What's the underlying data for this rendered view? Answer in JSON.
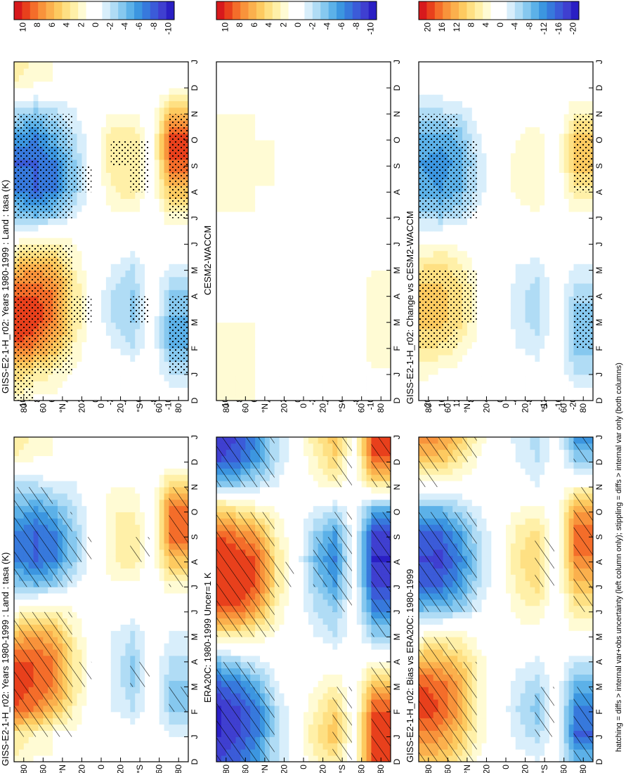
{
  "figure": {
    "footnote": "hatching = diffs > internal var+obs uncertainty (left column only); stippling = diffs > internal var only (both columns)"
  },
  "palette": {
    "levels": [
      "#d7191c",
      "#e8401c",
      "#f46d2a",
      "#f8933b",
      "#fbb04d",
      "#fdca60",
      "#fee083",
      "#fff0a8",
      "#fffbd4",
      "#ffffff",
      "#ffffff",
      "#d8eefb",
      "#b0dcf5",
      "#86c8ef",
      "#5cb1e8",
      "#3c96e0",
      "#3779dc",
      "#3b5bd8",
      "#3f3fd0",
      "#2a1fc4"
    ]
  },
  "chart_data": [
    {
      "type": "heatmap",
      "id": "p1",
      "title": "GISS-E2-1-H_r02: Years 1980-1999 : Land : tasa (K)",
      "x": [
        "D",
        "J",
        "F",
        "M",
        "A",
        "M",
        "J",
        "J",
        "A",
        "S",
        "O",
        "N",
        "D",
        "J"
      ],
      "y": [
        80,
        60,
        40,
        20,
        0,
        -20,
        -40,
        -60,
        -80
      ],
      "ytick_labels": [
        "80",
        "60",
        "°N",
        "20",
        "0",
        "20",
        "°S",
        "60",
        "80"
      ],
      "colorbar_labels": [
        "10",
        "8",
        "6",
        "4",
        "2",
        "0",
        "-2",
        "-4",
        "-6",
        "-8",
        "-10"
      ],
      "vmax": 10,
      "overlay": "hatching",
      "values": [
        [
          2,
          3,
          8,
          9,
          8,
          5,
          1,
          -3,
          -6,
          -6,
          -4,
          -2,
          2,
          3
        ],
        [
          1,
          2,
          7,
          8,
          8,
          6,
          2,
          -4,
          -7,
          -7,
          -5,
          -2,
          1,
          2
        ],
        [
          1,
          1,
          5,
          7,
          7,
          5,
          2,
          -3,
          -6,
          -6,
          -4,
          -1,
          1,
          1
        ],
        [
          0,
          1,
          2,
          3,
          3,
          2,
          1,
          -1,
          -3,
          -3,
          -2,
          -1,
          0,
          1
        ],
        [
          0,
          0,
          0,
          0,
          0,
          0,
          0,
          0,
          0,
          0,
          0,
          0,
          0,
          0
        ],
        [
          0,
          0,
          -1,
          -1,
          -1,
          -1,
          0,
          1,
          2,
          2,
          2,
          1,
          0,
          0
        ],
        [
          1,
          0,
          -2,
          -3,
          -3,
          -2,
          0,
          1,
          3,
          3,
          2,
          1,
          1,
          0
        ],
        [
          0,
          0,
          0,
          0,
          0,
          0,
          0,
          0,
          0,
          0,
          0,
          0,
          0,
          0
        ],
        [
          0,
          -1,
          -3,
          -3,
          -2,
          -1,
          0,
          2,
          5,
          8,
          8,
          4,
          0,
          -1
        ]
      ]
    },
    {
      "type": "heatmap",
      "id": "p2",
      "title": "GISS-E2-1-H_r02: Years 1980-1999 : Land : tasa (K)",
      "x": [
        "D",
        "J",
        "F",
        "M",
        "A",
        "M",
        "J",
        "J",
        "A",
        "S",
        "O",
        "N",
        "D",
        "J"
      ],
      "y": [
        80,
        60,
        40,
        20,
        0,
        -20,
        -40,
        -60,
        -80
      ],
      "ytick_labels": [
        "80",
        "60",
        "°N",
        "20",
        "0",
        "20",
        "°S",
        "60",
        "80"
      ],
      "colorbar_labels": [
        "10",
        "8",
        "6",
        "4",
        "2",
        "0",
        "-2",
        "-4",
        "-6",
        "-8",
        "-10"
      ],
      "vmax": 10,
      "overlay": "stippling",
      "values": [
        [
          2,
          4,
          8,
          9,
          8,
          5,
          1,
          -3,
          -6,
          -7,
          -5,
          -2,
          2,
          3
        ],
        [
          1,
          3,
          7,
          9,
          8,
          6,
          2,
          -4,
          -7,
          -7,
          -6,
          -3,
          1,
          2
        ],
        [
          1,
          2,
          5,
          7,
          7,
          5,
          2,
          -3,
          -6,
          -6,
          -4,
          -2,
          1,
          1
        ],
        [
          0,
          1,
          2,
          3,
          3,
          2,
          1,
          -1,
          -3,
          -3,
          -2,
          -1,
          0,
          1
        ],
        [
          0,
          0,
          0,
          0,
          0,
          0,
          0,
          0,
          0,
          0,
          0,
          0,
          0,
          0
        ],
        [
          0,
          0,
          -1,
          -2,
          -2,
          -1,
          0,
          1,
          2,
          3,
          3,
          1,
          0,
          0
        ],
        [
          1,
          0,
          -2,
          -3,
          -3,
          -2,
          0,
          1,
          3,
          3,
          3,
          1,
          1,
          0
        ],
        [
          0,
          0,
          0,
          0,
          0,
          0,
          0,
          0,
          0,
          0,
          0,
          0,
          0,
          0
        ],
        [
          0,
          -2,
          -4,
          -4,
          -3,
          -1,
          0,
          2,
          5,
          8,
          9,
          5,
          0,
          -1
        ]
      ]
    },
    {
      "type": "heatmap",
      "id": "p3",
      "title": "ERA20C: 1980-1999 Uncer=1 K",
      "x": [
        "D",
        "J",
        "F",
        "M",
        "A",
        "M",
        "J",
        "J",
        "A",
        "S",
        "O",
        "N",
        "D",
        "J"
      ],
      "y": [
        80,
        60,
        40,
        20,
        0,
        -20,
        -40,
        -60,
        -80
      ],
      "ytick_labels": [
        "80",
        "60",
        "°N",
        "20",
        "0",
        "20",
        "°S",
        "60",
        "80"
      ],
      "colorbar_labels": [
        "10",
        "8",
        "6",
        "4",
        "2",
        "0",
        "-2",
        "-4",
        "-6",
        "-8",
        "-10"
      ],
      "vmax": 10,
      "overlay": "hatching",
      "values": [
        [
          -8,
          -9,
          -9,
          -7,
          -3,
          3,
          8,
          9,
          9,
          8,
          4,
          -3,
          -8,
          -9
        ],
        [
          -7,
          -8,
          -8,
          -6,
          -2,
          3,
          8,
          9,
          9,
          7,
          3,
          -3,
          -7,
          -8
        ],
        [
          -5,
          -6,
          -6,
          -4,
          -1,
          2,
          6,
          8,
          8,
          6,
          2,
          -2,
          -5,
          -6
        ],
        [
          -2,
          -2,
          -2,
          -1,
          0,
          1,
          2,
          3,
          3,
          2,
          1,
          -1,
          -2,
          -2
        ],
        [
          0,
          0,
          0,
          0,
          0,
          0,
          0,
          0,
          0,
          0,
          0,
          0,
          0,
          0
        ],
        [
          2,
          3,
          2,
          1,
          0,
          -1,
          -2,
          -3,
          -4,
          -3,
          -1,
          1,
          2,
          3
        ],
        [
          3,
          5,
          4,
          2,
          0,
          -2,
          -3,
          -5,
          -6,
          -5,
          -2,
          2,
          4,
          5
        ],
        [
          0,
          0,
          0,
          0,
          0,
          0,
          0,
          0,
          0,
          0,
          0,
          0,
          0,
          0
        ],
        [
          9,
          9,
          8,
          5,
          1,
          -3,
          -6,
          -8,
          -9,
          -8,
          -4,
          3,
          8,
          9
        ]
      ]
    },
    {
      "type": "heatmap",
      "id": "p4",
      "title": "CESM2-WACCM",
      "x": [
        "D",
        "J",
        "F",
        "M",
        "A",
        "M",
        "J",
        "J",
        "A",
        "S",
        "O",
        "N",
        "D",
        "J"
      ],
      "y": [
        80,
        60,
        40,
        20,
        0,
        -20,
        -40,
        -60,
        -80
      ],
      "ytick_labels": [
        "80",
        "60",
        "°N",
        "20",
        "0",
        "20",
        "°S",
        "60",
        "80"
      ],
      "colorbar_labels": [
        "10",
        "8",
        "6",
        "4",
        "2",
        "0",
        "-2",
        "-4",
        "-6",
        "-8",
        "-10"
      ],
      "vmax": 10,
      "overlay": "stippling",
      "values": [
        [
          2,
          2,
          2,
          1,
          1,
          1,
          1,
          1,
          2,
          2,
          2,
          1,
          0,
          0
        ],
        [
          2,
          2,
          2,
          1,
          1,
          0,
          0,
          1,
          2,
          2,
          2,
          1,
          0,
          0
        ],
        [
          1,
          1,
          1,
          1,
          1,
          0,
          0,
          1,
          1,
          2,
          1,
          1,
          0,
          0
        ],
        [
          1,
          1,
          1,
          0,
          0,
          0,
          0,
          0,
          1,
          1,
          1,
          0,
          0,
          0
        ],
        [
          0,
          0,
          0,
          0,
          0,
          0,
          0,
          0,
          0,
          0,
          0,
          0,
          0,
          0
        ],
        [
          0,
          0,
          0,
          1,
          1,
          0,
          0,
          0,
          1,
          0,
          0,
          0,
          0,
          1
        ],
        [
          0,
          1,
          1,
          1,
          1,
          1,
          0,
          0,
          1,
          0,
          0,
          0,
          0,
          1
        ],
        [
          0,
          0,
          0,
          0,
          0,
          0,
          0,
          0,
          0,
          0,
          0,
          0,
          0,
          0
        ],
        [
          0,
          1,
          2,
          2,
          2,
          1,
          1,
          0,
          0,
          0,
          0,
          0,
          0,
          0
        ]
      ]
    },
    {
      "type": "heatmap",
      "id": "p5",
      "title": "GISS-E2-1-H_r02: Bias vs ERA20C: 1980-1999",
      "x": [
        "D",
        "J",
        "F",
        "M",
        "A",
        "M",
        "J",
        "J",
        "A",
        "S",
        "O",
        "N",
        "D",
        "J"
      ],
      "y": [
        80,
        60,
        40,
        20,
        0,
        -20,
        -40,
        -60,
        -80
      ],
      "ytick_labels": [
        "80",
        "60",
        "°N",
        "20",
        "0",
        "20",
        "°S",
        "60",
        "80"
      ],
      "colorbar_labels": [
        "20",
        "16",
        "12",
        "8",
        "4",
        "0",
        "-4",
        "-8",
        "-12",
        "-16",
        "-20"
      ],
      "vmax": 20,
      "overlay": "hatching",
      "values": [
        [
          10,
          14,
          18,
          16,
          10,
          2,
          -8,
          -14,
          -16,
          -14,
          -8,
          2,
          10,
          14
        ],
        [
          9,
          13,
          16,
          15,
          10,
          3,
          -7,
          -14,
          -17,
          -14,
          -8,
          2,
          9,
          13
        ],
        [
          6,
          9,
          12,
          12,
          8,
          3,
          -6,
          -11,
          -12,
          -10,
          -5,
          1,
          6,
          9
        ],
        [
          2,
          3,
          4,
          4,
          3,
          1,
          -2,
          -4,
          -5,
          -4,
          -2,
          1,
          2,
          3
        ],
        [
          0,
          0,
          0,
          0,
          0,
          0,
          0,
          0,
          0,
          0,
          0,
          0,
          0,
          0
        ],
        [
          -1,
          -3,
          -4,
          -3,
          -1,
          1,
          3,
          5,
          6,
          5,
          2,
          -1,
          -2,
          -3
        ],
        [
          -2,
          -5,
          -7,
          -5,
          -2,
          1,
          4,
          7,
          8,
          7,
          3,
          -2,
          -4,
          -5
        ],
        [
          0,
          0,
          0,
          0,
          0,
          0,
          0,
          0,
          0,
          0,
          0,
          0,
          0,
          0
        ],
        [
          -8,
          -14,
          -12,
          -8,
          -3,
          2,
          6,
          10,
          14,
          16,
          12,
          2,
          -6,
          -12
        ]
      ]
    },
    {
      "type": "heatmap",
      "id": "p6",
      "title": "GISS-E2-1-H_r02: Change vs CESM2-WACCM",
      "x": [
        "D",
        "J",
        "F",
        "M",
        "A",
        "M",
        "J",
        "J",
        "A",
        "S",
        "O",
        "N",
        "D",
        "J"
      ],
      "y": [
        80,
        60,
        40,
        20,
        0,
        -20,
        -40,
        -60,
        -80
      ],
      "ytick_labels": [
        "80",
        "60",
        "°N",
        "20",
        "0",
        "20",
        "°S",
        "60",
        "80"
      ],
      "colorbar_labels": [
        "20",
        "16",
        "12",
        "8",
        "4",
        "0",
        "-4",
        "-8",
        "-12",
        "-16",
        "-20"
      ],
      "vmax": 20,
      "overlay": "stippling",
      "values": [
        [
          1,
          3,
          7,
          9,
          9,
          6,
          1,
          -5,
          -9,
          -10,
          -8,
          -4,
          0,
          1
        ],
        [
          0,
          2,
          6,
          9,
          9,
          7,
          2,
          -6,
          -10,
          -11,
          -9,
          -4,
          0,
          1
        ],
        [
          0,
          1,
          4,
          7,
          7,
          5,
          1,
          -4,
          -8,
          -9,
          -7,
          -3,
          0,
          0
        ],
        [
          0,
          0,
          1,
          2,
          2,
          1,
          0,
          -1,
          -3,
          -3,
          -2,
          -1,
          0,
          0
        ],
        [
          0,
          0,
          0,
          0,
          0,
          0,
          0,
          0,
          0,
          0,
          0,
          0,
          0,
          0
        ],
        [
          0,
          0,
          -2,
          -3,
          -3,
          -2,
          0,
          1,
          3,
          3,
          2,
          1,
          0,
          0
        ],
        [
          0,
          -1,
          -3,
          -5,
          -5,
          -3,
          0,
          2,
          4,
          4,
          3,
          1,
          0,
          0
        ],
        [
          0,
          0,
          0,
          0,
          0,
          0,
          0,
          0,
          0,
          0,
          0,
          0,
          0,
          0
        ],
        [
          0,
          -4,
          -7,
          -7,
          -5,
          -2,
          0,
          2,
          6,
          10,
          9,
          4,
          0,
          -2
        ]
      ]
    }
  ]
}
